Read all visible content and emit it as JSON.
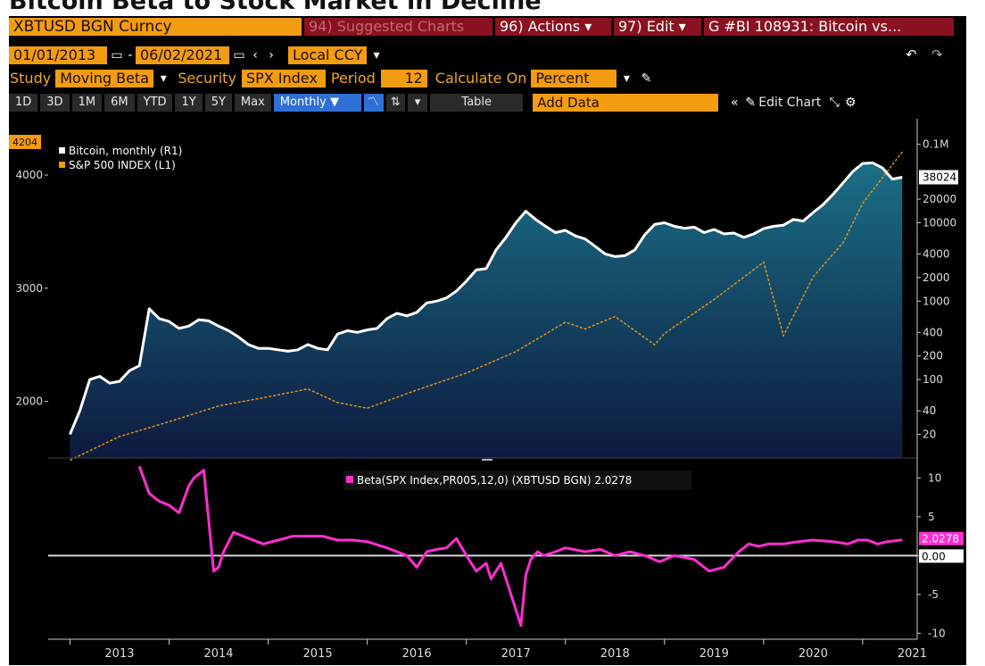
{
  "page": {
    "title": "Bitcoin Beta to Stock Market in Decline"
  },
  "toolbar1": {
    "ticker": "XBTUSD BGN Curncy",
    "suggested": "94) Suggested Charts",
    "actions": "96) Actions ▾",
    "edit": "97) Edit ▾",
    "chart_title": "G #BI 108931: Bitcoin vs..."
  },
  "toolbar2": {
    "date_start": "01/01/2013",
    "date_end": "06/02/2021",
    "currency": "Local CCY"
  },
  "toolbar3": {
    "study_label": "Study",
    "study_value": "Moving Beta",
    "security_label": "Security",
    "security_value": "SPX Index",
    "period_label": "Period",
    "period_value": "12",
    "calc_label": "Calculate On",
    "calc_value": "Percent"
  },
  "toolbar4": {
    "ranges": [
      "1D",
      "3D",
      "1M",
      "6M",
      "YTD",
      "1Y",
      "5Y",
      "Max"
    ],
    "frequency": "Monthly ▼",
    "table": "Table",
    "add_data": "Add Data",
    "edit_chart": "Edit Chart"
  },
  "colors": {
    "btc": "#ffffff",
    "spx": "#f39c12",
    "beta": "#ff2fd0",
    "zero": "#d8d8d8",
    "fill_top": "#1a6f86",
    "fill_bottom": "#0d1a3f"
  },
  "chart_data": [
    {
      "type": "line",
      "legend": [
        "Bitcoin, monthly (R1)",
        "S&P 500 INDEX (L1)"
      ],
      "x_ticks": [
        "2013",
        "2014",
        "2015",
        "2016",
        "2017",
        "2018",
        "2019",
        "2020",
        "2021"
      ],
      "left_axis": {
        "ticks": [
          2000,
          3000,
          4000
        ],
        "ylim": [
          1500,
          4300
        ],
        "last_label": "4204"
      },
      "right_axis": {
        "scale": "log",
        "ticks": [
          "0.1M",
          "20000",
          "10000",
          "4000",
          "2000",
          "1000",
          "400",
          "200",
          "100",
          "40",
          "20"
        ],
        "last_label": "38024"
      },
      "series": [
        {
          "name": "Bitcoin, monthly (R1)",
          "axis": "right",
          "x": [
            2013.0,
            2013.1,
            2013.2,
            2013.3,
            2013.4,
            2013.5,
            2013.6,
            2013.7,
            2013.8,
            2013.9,
            2014.0,
            2014.1,
            2014.2,
            2014.3,
            2014.4,
            2014.5,
            2014.6,
            2014.7,
            2014.8,
            2014.9,
            2015.0,
            2015.1,
            2015.2,
            2015.3,
            2015.4,
            2015.5,
            2015.6,
            2015.7,
            2015.8,
            2015.9,
            2016.0,
            2016.1,
            2016.2,
            2016.3,
            2016.4,
            2016.5,
            2016.6,
            2016.7,
            2016.8,
            2016.9,
            2017.0,
            2017.1,
            2017.2,
            2017.3,
            2017.4,
            2017.5,
            2017.6,
            2017.7,
            2017.8,
            2017.9,
            2018.0,
            2018.1,
            2018.2,
            2018.3,
            2018.4,
            2018.5,
            2018.6,
            2018.7,
            2018.8,
            2018.9,
            2019.0,
            2019.1,
            2019.2,
            2019.3,
            2019.4,
            2019.5,
            2019.6,
            2019.7,
            2019.8,
            2019.9,
            2020.0,
            2020.1,
            2020.2,
            2020.3,
            2020.4,
            2020.5,
            2020.6,
            2020.7,
            2020.8,
            2020.9,
            2021.0,
            2021.1,
            2021.2,
            2021.3,
            2021.4
          ],
          "values": [
            20,
            40,
            100,
            110,
            90,
            95,
            130,
            150,
            800,
            600,
            550,
            450,
            480,
            580,
            560,
            480,
            420,
            350,
            280,
            250,
            250,
            240,
            230,
            240,
            280,
            250,
            240,
            380,
            420,
            400,
            430,
            450,
            600,
            700,
            650,
            720,
            950,
            1000,
            1100,
            1350,
            1800,
            2500,
            2600,
            4500,
            6500,
            10000,
            14000,
            11000,
            9000,
            7500,
            8000,
            6800,
            6200,
            5000,
            4000,
            3700,
            3800,
            4500,
            7000,
            9500,
            10000,
            9000,
            8500,
            8800,
            7500,
            8200,
            7200,
            7400,
            6500,
            7200,
            8400,
            9000,
            9300,
            11000,
            10500,
            13500,
            17000,
            23000,
            32000,
            45000,
            57000,
            58000,
            50000,
            36000,
            38024
          ]
        },
        {
          "name": "S&P 500 INDEX (L1)",
          "axis": "left",
          "x": [
            2013.0,
            2013.5,
            2014.0,
            2014.5,
            2015.0,
            2015.4,
            2015.7,
            2016.0,
            2016.5,
            2017.0,
            2017.5,
            2018.0,
            2018.2,
            2018.5,
            2018.9,
            2019.0,
            2019.5,
            2020.0,
            2020.2,
            2020.5,
            2020.8,
            2021.0,
            2021.4
          ],
          "values": [
            1480,
            1690,
            1820,
            1960,
            2040,
            2110,
            1990,
            1940,
            2100,
            2250,
            2440,
            2700,
            2640,
            2750,
            2500,
            2600,
            2900,
            3230,
            2580,
            3100,
            3400,
            3750,
            4204
          ]
        }
      ]
    },
    {
      "type": "line",
      "legend": [
        "Beta(SPX Index,PR005,12,0) (XBTUSD BGN) 2.0278"
      ],
      "right_axis": {
        "ticks": [
          10,
          5,
          0,
          -5,
          -10
        ],
        "ylim": [
          -11,
          12
        ],
        "last_label": "2.0278",
        "zero_label": "0.00"
      },
      "series": [
        {
          "name": "Beta(SPX Index,PR005,12,0) (XBTUSD BGN) 2.0278",
          "x": [
            2013.7,
            2013.8,
            2013.9,
            2014.0,
            2014.1,
            2014.2,
            2014.25,
            2014.35,
            2014.45,
            2014.5,
            2014.55,
            2014.65,
            2014.75,
            2014.85,
            2014.95,
            2015.1,
            2015.25,
            2015.4,
            2015.55,
            2015.7,
            2015.85,
            2016.0,
            2016.2,
            2016.4,
            2016.5,
            2016.6,
            2016.7,
            2016.8,
            2016.9,
            2017.0,
            2017.1,
            2017.2,
            2017.25,
            2017.35,
            2017.45,
            2017.55,
            2017.6,
            2017.65,
            2017.72,
            2017.78,
            2017.9,
            2018.0,
            2018.2,
            2018.35,
            2018.5,
            2018.65,
            2018.8,
            2018.95,
            2019.1,
            2019.3,
            2019.45,
            2019.6,
            2019.75,
            2019.85,
            2019.95,
            2020.05,
            2020.2,
            2020.35,
            2020.5,
            2020.7,
            2020.85,
            2020.95,
            2021.05,
            2021.15,
            2021.25,
            2021.4
          ],
          "values": [
            11.5,
            8,
            7,
            6.5,
            5.5,
            9,
            10,
            11,
            -2,
            -1.5,
            0.5,
            3,
            2.5,
            2,
            1.5,
            2,
            2.5,
            2.5,
            2.5,
            2,
            2,
            1.8,
            1,
            0,
            -1.5,
            0.5,
            0.8,
            1,
            2.2,
            0,
            -2,
            -1,
            -3,
            -1,
            -5,
            -9,
            -2.5,
            -0.5,
            0.5,
            0,
            0.5,
            1,
            0.5,
            0.8,
            0,
            0.5,
            0,
            -0.8,
            0,
            -0.5,
            -2,
            -1.5,
            0.5,
            1.5,
            1.2,
            1.5,
            1.5,
            1.8,
            2,
            1.8,
            1.5,
            2,
            2,
            1.5,
            1.8,
            2.0278
          ]
        }
      ]
    }
  ]
}
